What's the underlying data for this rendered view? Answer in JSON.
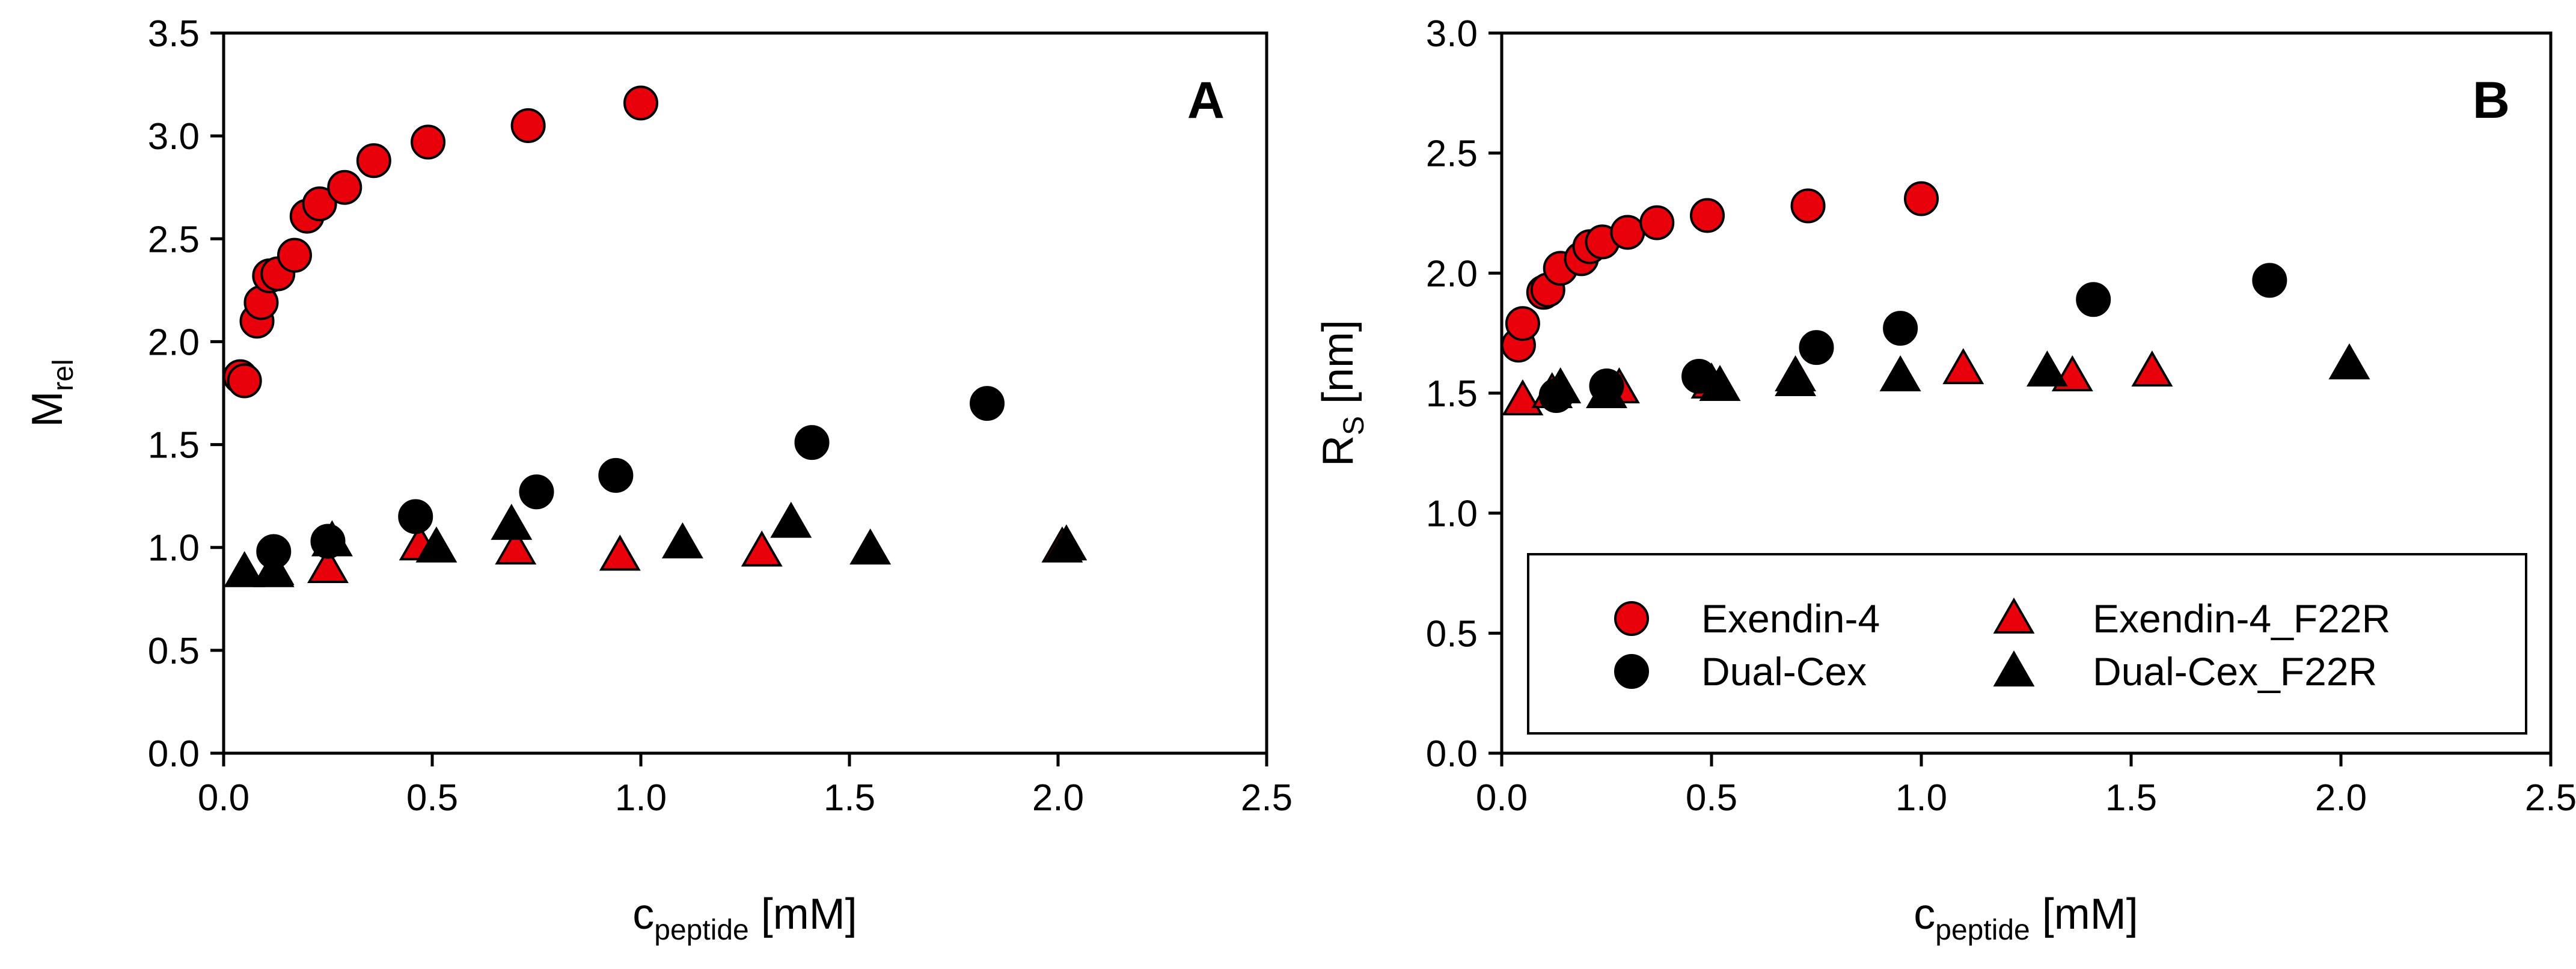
{
  "chart_data": [
    {
      "type": "scatter",
      "panel_label": "A",
      "xlabel": {
        "main": "c",
        "sub": "peptide",
        "unit": " [mM]"
      },
      "ylabel": {
        "main": "M",
        "sub": "rel",
        "unit": ""
      },
      "xlim": [
        0,
        2.5
      ],
      "ylim": [
        0,
        3.5
      ],
      "x_ticks": [
        "0.0",
        "0.5",
        "1.0",
        "1.5",
        "2.0",
        "2.5"
      ],
      "y_ticks": [
        "0.0",
        "0.5",
        "1.0",
        "1.5",
        "2.0",
        "2.5",
        "3.0",
        "3.5"
      ],
      "series": [
        {
          "name": "Exendin-4",
          "marker": "circle",
          "color": "#e8000b",
          "points": [
            [
              0.04,
              1.83
            ],
            [
              0.05,
              1.81
            ],
            [
              0.08,
              2.1
            ],
            [
              0.09,
              2.19
            ],
            [
              0.11,
              2.32
            ],
            [
              0.13,
              2.33
            ],
            [
              0.17,
              2.42
            ],
            [
              0.2,
              2.61
            ],
            [
              0.23,
              2.67
            ],
            [
              0.29,
              2.75
            ],
            [
              0.36,
              2.88
            ],
            [
              0.49,
              2.97
            ],
            [
              0.73,
              3.05
            ],
            [
              1.0,
              3.16
            ]
          ]
        },
        {
          "name": "Dual-Cex",
          "marker": "circle",
          "color": "#000000",
          "points": [
            [
              0.12,
              0.98
            ],
            [
              0.25,
              1.03
            ],
            [
              0.46,
              1.15
            ],
            [
              0.75,
              1.27
            ],
            [
              0.94,
              1.35
            ],
            [
              1.41,
              1.51
            ],
            [
              1.83,
              1.7
            ]
          ]
        },
        {
          "name": "Exendin-4_F22R",
          "marker": "triangle",
          "color": "#e8000b",
          "points": [
            [
              0.12,
              0.88
            ],
            [
              0.25,
              0.9
            ],
            [
              0.47,
              1.01
            ],
            [
              0.7,
              0.99
            ],
            [
              0.95,
              0.96
            ],
            [
              1.29,
              0.98
            ],
            [
              2.01,
              1.0
            ]
          ]
        },
        {
          "name": "Dual-Cex_F22R",
          "marker": "triangle",
          "color": "#000000",
          "points": [
            [
              0.05,
              0.88
            ],
            [
              0.12,
              0.89
            ],
            [
              0.26,
              1.03
            ],
            [
              0.51,
              1.0
            ],
            [
              0.69,
              1.11
            ],
            [
              1.1,
              1.02
            ],
            [
              1.36,
              1.12
            ],
            [
              1.55,
              0.99
            ],
            [
              2.02,
              1.01
            ]
          ]
        }
      ]
    },
    {
      "type": "scatter",
      "panel_label": "B",
      "xlabel": {
        "main": "c",
        "sub": "peptide",
        "unit": " [mM]"
      },
      "ylabel": {
        "main": "R",
        "sub": "S",
        "unit": " [nm]"
      },
      "xlim": [
        0,
        2.5
      ],
      "ylim": [
        0,
        3.0
      ],
      "x_ticks": [
        "0.0",
        "0.5",
        "1.0",
        "1.5",
        "2.0",
        "2.5"
      ],
      "y_ticks": [
        "0.0",
        "0.5",
        "1.0",
        "1.5",
        "2.0",
        "2.5",
        "3.0"
      ],
      "legend": {
        "position": "bottom-right",
        "columns": 2,
        "order": [
          "Exendin-4",
          "Exendin-4_F22R",
          "Dual-Cex",
          "Dual-Cex_F22R"
        ]
      },
      "series": [
        {
          "name": "Exendin-4",
          "marker": "circle",
          "color": "#e8000b",
          "points": [
            [
              0.04,
              1.7
            ],
            [
              0.05,
              1.79
            ],
            [
              0.1,
              1.92
            ],
            [
              0.11,
              1.93
            ],
            [
              0.14,
              2.02
            ],
            [
              0.19,
              2.06
            ],
            [
              0.21,
              2.11
            ],
            [
              0.24,
              2.13
            ],
            [
              0.3,
              2.17
            ],
            [
              0.37,
              2.21
            ],
            [
              0.49,
              2.24
            ],
            [
              0.73,
              2.28
            ],
            [
              1.0,
              2.31
            ]
          ]
        },
        {
          "name": "Dual-Cex",
          "marker": "circle",
          "color": "#000000",
          "points": [
            [
              0.13,
              1.49
            ],
            [
              0.25,
              1.53
            ],
            [
              0.47,
              1.57
            ],
            [
              0.75,
              1.69
            ],
            [
              0.95,
              1.77
            ],
            [
              1.41,
              1.89
            ],
            [
              1.83,
              1.97
            ]
          ]
        },
        {
          "name": "Exendin-4_F22R",
          "marker": "triangle",
          "color": "#e8000b",
          "points": [
            [
              0.05,
              1.47
            ],
            [
              0.12,
              1.5
            ],
            [
              0.28,
              1.52
            ],
            [
              0.5,
              1.54
            ],
            [
              0.7,
              1.57
            ],
            [
              1.1,
              1.6
            ],
            [
              1.36,
              1.57
            ],
            [
              1.55,
              1.59
            ]
          ]
        },
        {
          "name": "Dual-Cex_F22R",
          "marker": "triangle",
          "color": "#000000",
          "points": [
            [
              0.14,
              1.52
            ],
            [
              0.25,
              1.5
            ],
            [
              0.52,
              1.53
            ],
            [
              0.7,
              1.55
            ],
            [
              0.95,
              1.57
            ],
            [
              1.3,
              1.59
            ],
            [
              2.02,
              1.62
            ]
          ]
        }
      ]
    }
  ]
}
